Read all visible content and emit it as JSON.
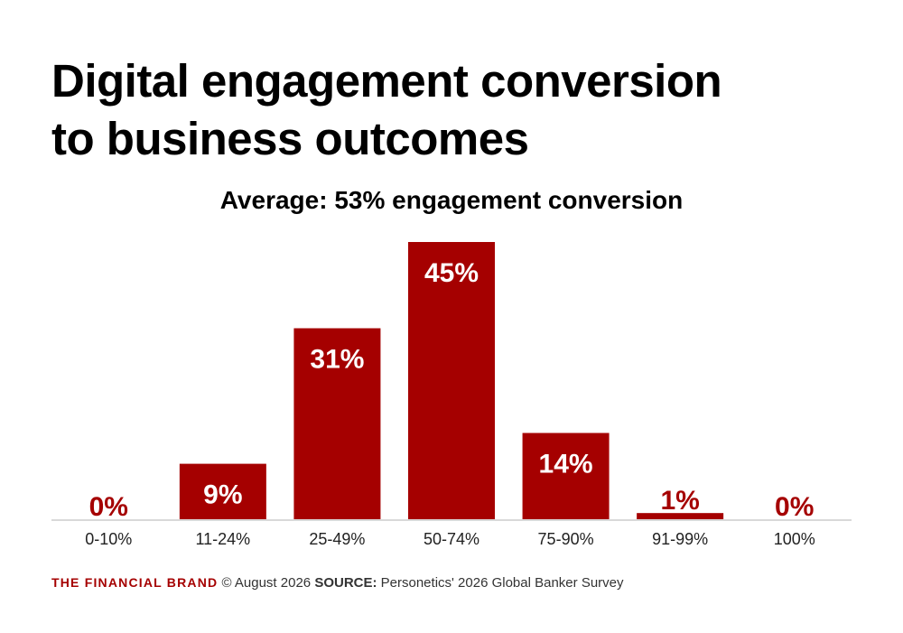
{
  "chart_data": {
    "type": "bar",
    "title": "Digital engagement conversion to business outcomes",
    "title_lines": [
      "Digital engagement conversion",
      "to business outcomes"
    ],
    "subtitle": "Average: 53% engagement conversion",
    "categories": [
      "0-10%",
      "11-24%",
      "25-49%",
      "50-74%",
      "75-90%",
      "91-99%",
      "100%"
    ],
    "values": [
      0,
      9,
      31,
      45,
      14,
      1,
      0
    ],
    "data_labels": [
      "0%",
      "9%",
      "31%",
      "45%",
      "14%",
      "1%",
      "0%"
    ],
    "xlabel": "",
    "ylabel": "",
    "ylim": [
      0,
      45
    ],
    "grid": false,
    "legend": "none",
    "bar_color": "#a50000",
    "label_inside_color": "#ffffff",
    "label_outside_color": "#a50000",
    "axis_color": "#d9d9d9"
  },
  "footer": {
    "brand": "THE FINANCIAL BRAND",
    "copyright": "© August 2026",
    "source_label": "SOURCE:",
    "source_text": "Personetics' 2026 Global Banker Survey"
  }
}
